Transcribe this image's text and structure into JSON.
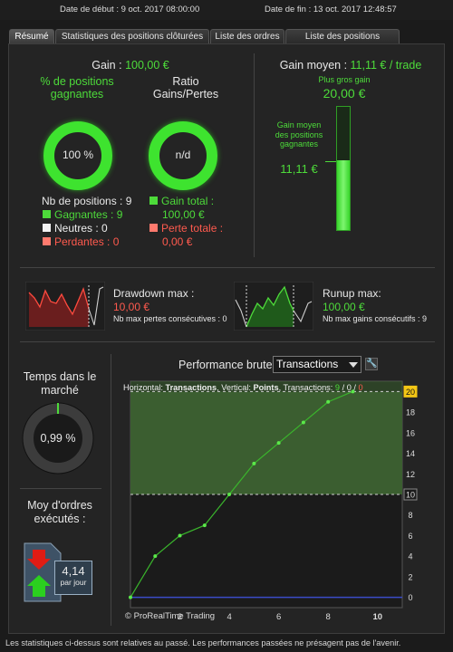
{
  "header": {
    "start_date": "Date de début : 9 oct. 2017 08:00:00",
    "end_date": "Date de fin : 13 oct. 2017 12:48:57"
  },
  "tabs": [
    {
      "label": "Résumé",
      "active": true
    },
    {
      "label": "Statistiques des positions clôturées",
      "active": false
    },
    {
      "label": "Liste des ordres",
      "active": false
    },
    {
      "label": "Liste des positions clôturées",
      "active": false
    }
  ],
  "gain": {
    "label": "Gain :",
    "value": "100,00 €"
  },
  "win_pct": {
    "label": "% de positions gagnantes",
    "value": "100 %",
    "fraction": 1.0
  },
  "ratio": {
    "label": "Ratio Gains/Pertes",
    "value": "n/d"
  },
  "positions": {
    "count_label": "Nb de positions : 9",
    "winners": "Gagnantes : 9",
    "neutral": "Neutres : 0",
    "losers": "Perdantes : 0"
  },
  "totals": {
    "gain_label": "Gain total :",
    "gain_value": "100,00 €",
    "loss_label": "Perte totale :",
    "loss_value": "0,00 €"
  },
  "avg_gain": {
    "label": "Gain moyen :",
    "value": "11,11 € / trade",
    "max_label": "Plus gros gain",
    "max_value": "20,00 €",
    "avg_side_label": "Gain moyen des positions gagnantes",
    "avg_side_value": "11,11 €",
    "fill_fraction": 0.5555
  },
  "drawdown": {
    "label": "Drawdown max :",
    "value": "10,00 €",
    "sub": "Nb max pertes consécutives : 0"
  },
  "runup": {
    "label": "Runup max:",
    "value": "100,00 €",
    "sub": "Nb max gains consécutifs : 9"
  },
  "market_time": {
    "label": "Temps dans le marché",
    "value": "0,99 %",
    "fraction": 0.0099
  },
  "orders": {
    "label": "Moy d'ordres exécutés :",
    "value": "4,14",
    "unit": "par jour"
  },
  "performance": {
    "label": "Performance brute",
    "selected": "Transactions"
  },
  "footer": {
    "text": "Les statistiques ci-dessus sont relatives au passé. Les performances passées ne présagent pas de l'avenir."
  },
  "chart_data": {
    "type": "line",
    "legend_parts": {
      "h_label": "Horizontal: ",
      "h_value": "Transactions",
      "v_label": ", Vertical: ",
      "v_value": "Points",
      "t_label": ", Transactions: ",
      "t_total": "9",
      "t_sep": " / ",
      "t_zero": "0",
      "t_loss": "0"
    },
    "x": [
      0,
      1,
      2,
      3,
      4,
      5,
      6,
      7,
      8,
      9
    ],
    "y": [
      0,
      4,
      6,
      7,
      10,
      13,
      15,
      17,
      19,
      20
    ],
    "xlim": [
      0,
      11
    ],
    "ylim": [
      -1,
      21
    ],
    "x_ticks": [
      "2",
      "4",
      "6",
      "8",
      "10"
    ],
    "y_ticks": [
      "0",
      "2",
      "4",
      "6",
      "8",
      "10",
      "12",
      "14",
      "16",
      "18",
      "20"
    ],
    "highlight_ticks": [
      "10",
      "20"
    ],
    "watermark": "© ProRealTime Trading"
  },
  "colors": {
    "accent_green": "#4ddb3a",
    "loss_red": "#ff5a4e"
  }
}
